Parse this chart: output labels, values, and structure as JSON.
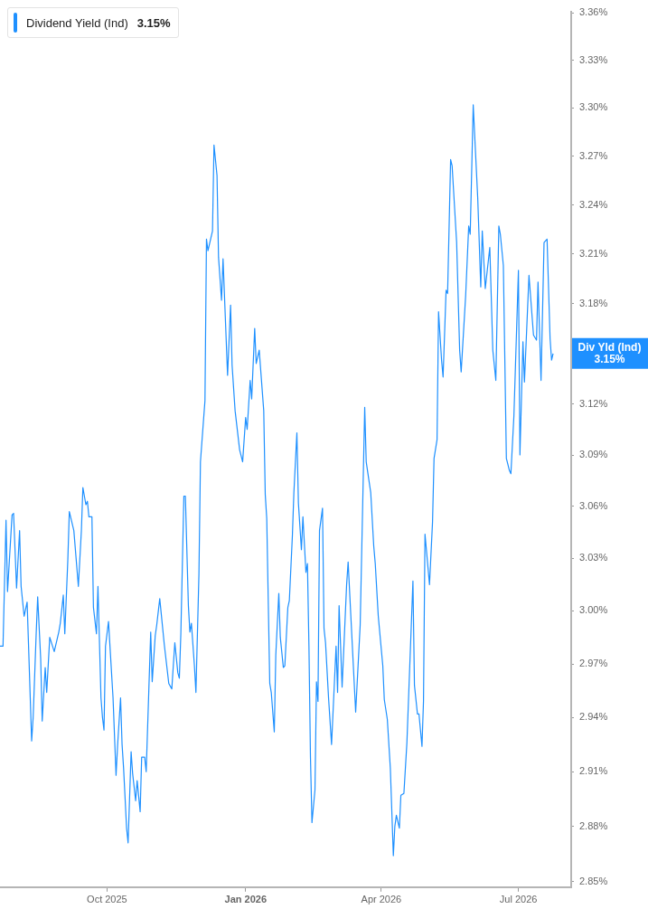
{
  "chart_data": {
    "type": "line",
    "log": true,
    "legend": "top left",
    "xlim": [
      "2025-07-22",
      "2026-08-05"
    ],
    "xticks": [
      {
        "value": "2025-10-01",
        "label": "Oct 2025"
      },
      {
        "value": "2026-01-01",
        "label": "Jan 2026"
      },
      {
        "value": "2026-04-01",
        "label": "Apr 2026"
      },
      {
        "value": "2026-07-01",
        "label": "Jul 2026"
      }
    ],
    "ylim": [
      2.847,
      3.361
    ],
    "yticks": [
      {
        "value": 2.85,
        "label": "2.85%"
      },
      {
        "value": 2.88,
        "label": "2.88%"
      },
      {
        "value": 2.91,
        "label": "2.91%"
      },
      {
        "value": 2.94,
        "label": "2.94%"
      },
      {
        "value": 2.97,
        "label": "2.97%"
      },
      {
        "value": 3.0,
        "label": "3.00%"
      },
      {
        "value": 3.03,
        "label": "3.03%"
      },
      {
        "value": 3.06,
        "label": "3.06%"
      },
      {
        "value": 3.09,
        "label": "3.09%"
      },
      {
        "value": 3.12,
        "label": "3.12%"
      },
      {
        "value": 3.15,
        "label": null
      },
      {
        "value": 3.18,
        "label": "3.18%"
      },
      {
        "value": 3.21,
        "label": "3.21%"
      },
      {
        "value": 3.24,
        "label": "3.24%"
      },
      {
        "value": 3.27,
        "label": "3.27%"
      },
      {
        "value": 3.3,
        "label": "3.30%"
      },
      {
        "value": 3.33,
        "label": "3.33%"
      },
      {
        "value": 3.36,
        "label": "3.36%"
      }
    ],
    "annotations": [
      "3.15%",
      {
        "text": "Div Yld (Ind)\n3.15%",
        "x": "2026-07-24",
        "y": 3.15
      }
    ],
    "x": [
      "2025-07-22",
      "2025-07-24",
      "2025-07-26",
      "2025-07-27",
      "2025-07-30",
      "2025-07-31",
      "2025-08-02",
      "2025-08-04",
      "2025-08-05",
      "2025-08-07",
      "2025-08-09",
      "2025-08-12",
      "2025-08-13",
      "2025-08-15",
      "2025-08-16",
      "2025-08-18",
      "2025-08-19",
      "2025-08-21",
      "2025-08-22",
      "2025-08-24",
      "2025-08-27",
      "2025-08-30",
      "2025-08-31",
      "2025-09-02",
      "2025-09-03",
      "2025-09-05",
      "2025-09-06",
      "2025-09-09",
      "2025-09-12",
      "2025-09-14",
      "2025-09-15",
      "2025-09-17",
      "2025-09-18",
      "2025-09-19",
      "2025-09-21",
      "2025-09-22",
      "2025-09-24",
      "2025-09-25",
      "2025-09-27",
      "2025-09-28",
      "2025-09-29",
      "2025-09-30",
      "2025-10-02",
      "2025-10-05",
      "2025-10-07",
      "2025-10-08",
      "2025-10-10",
      "2025-10-11",
      "2025-10-12",
      "2025-10-14",
      "2025-10-15",
      "2025-10-17",
      "2025-10-18",
      "2025-10-20",
      "2025-10-21",
      "2025-10-23",
      "2025-10-24",
      "2025-10-26",
      "2025-10-27",
      "2025-10-30",
      "2025-10-31",
      "2025-11-02",
      "2025-11-03",
      "2025-11-05",
      "2025-11-08",
      "2025-11-11",
      "2025-11-13",
      "2025-11-15",
      "2025-11-17",
      "2025-11-18",
      "2025-11-19",
      "2025-11-21",
      "2025-11-22",
      "2025-11-24",
      "2025-11-25",
      "2025-11-26",
      "2025-11-28",
      "2025-11-29",
      "2025-12-01",
      "2025-12-02",
      "2025-12-05",
      "2025-12-06",
      "2025-12-07",
      "2025-12-10",
      "2025-12-11",
      "2025-12-13",
      "2025-12-14",
      "2025-12-16",
      "2025-12-17",
      "2025-12-20",
      "2025-12-22",
      "2025-12-23",
      "2025-12-25",
      "2025-12-28",
      "2025-12-30",
      "2026-01-01",
      "2026-01-02",
      "2026-01-04",
      "2026-01-05",
      "2026-01-07",
      "2026-01-08",
      "2026-01-10",
      "2026-01-13",
      "2026-01-14",
      "2026-01-15",
      "2026-01-17",
      "2026-01-18",
      "2026-01-20",
      "2026-01-21",
      "2026-01-23",
      "2026-01-24",
      "2026-01-26",
      "2026-01-27",
      "2026-01-29",
      "2026-01-30",
      "2026-02-01",
      "2026-02-02",
      "2026-02-04",
      "2026-02-05",
      "2026-02-07",
      "2026-02-08",
      "2026-02-10",
      "2026-02-11",
      "2026-02-12",
      "2026-02-13",
      "2026-02-14",
      "2026-02-16",
      "2026-02-17",
      "2026-02-18",
      "2026-02-19",
      "2026-02-21",
      "2026-02-22",
      "2026-02-23",
      "2026-02-25",
      "2026-02-27",
      "2026-03-02",
      "2026-03-03",
      "2026-03-04",
      "2026-03-06",
      "2026-03-09",
      "2026-03-10",
      "2026-03-15",
      "2026-03-18",
      "2026-03-21",
      "2026-03-22",
      "2026-03-24",
      "2026-03-25",
      "2026-03-27",
      "2026-03-28",
      "2026-03-30",
      "2026-04-02",
      "2026-04-03",
      "2026-04-05",
      "2026-04-07",
      "2026-04-09",
      "2026-04-10",
      "2026-04-11",
      "2026-04-13",
      "2026-04-14",
      "2026-04-16",
      "2026-04-18",
      "2026-04-22",
      "2026-04-23",
      "2026-04-25",
      "2026-04-26",
      "2026-04-28",
      "2026-04-29",
      "2026-04-30",
      "2026-05-03",
      "2026-05-05",
      "2026-05-06",
      "2026-05-08",
      "2026-05-09",
      "2026-05-11",
      "2026-05-12",
      "2026-05-14",
      "2026-05-15",
      "2026-05-17",
      "2026-05-18",
      "2026-05-21",
      "2026-05-23",
      "2026-05-24",
      "2026-05-27",
      "2026-05-29",
      "2026-05-30",
      "2026-06-01",
      "2026-06-04",
      "2026-06-06",
      "2026-06-07",
      "2026-06-09",
      "2026-06-12",
      "2026-06-14",
      "2026-06-16",
      "2026-06-18",
      "2026-06-19",
      "2026-06-21",
      "2026-06-23",
      "2026-06-25",
      "2026-06-26",
      "2026-06-28",
      "2026-07-01",
      "2026-07-02",
      "2026-07-04",
      "2026-07-05",
      "2026-07-08",
      "2026-07-11",
      "2026-07-13",
      "2026-07-14",
      "2026-07-16",
      "2026-07-18",
      "2026-07-20",
      "2026-07-22",
      "2026-07-23",
      "2026-07-24"
    ],
    "series": [
      {
        "name": "Dividend Yield (Ind)",
        "color": "#1e90ff",
        "values": [
          2.98,
          2.98,
          3.052,
          3.011,
          3.055,
          3.056,
          3.013,
          3.046,
          3.014,
          2.997,
          3.005,
          2.927,
          2.94,
          2.987,
          3.008,
          2.973,
          2.938,
          2.968,
          2.954,
          2.985,
          2.977,
          2.988,
          2.993,
          3.009,
          2.987,
          3.029,
          3.057,
          3.046,
          3.014,
          3.046,
          3.071,
          3.061,
          3.063,
          3.054,
          3.054,
          3.002,
          2.987,
          3.014,
          2.951,
          2.94,
          2.933,
          2.98,
          2.994,
          2.951,
          2.908,
          2.924,
          2.951,
          2.925,
          2.912,
          2.879,
          2.871,
          2.921,
          2.909,
          2.894,
          2.905,
          2.888,
          2.918,
          2.918,
          2.91,
          2.988,
          2.96,
          2.986,
          2.992,
          3.007,
          2.981,
          2.959,
          2.956,
          2.982,
          2.965,
          2.962,
          2.987,
          3.066,
          3.066,
          3.003,
          2.988,
          2.993,
          2.969,
          2.954,
          3.021,
          3.086,
          3.122,
          3.219,
          3.212,
          3.224,
          3.277,
          3.258,
          3.208,
          3.182,
          3.207,
          3.137,
          3.179,
          3.143,
          3.116,
          3.093,
          3.086,
          3.112,
          3.105,
          3.134,
          3.123,
          3.165,
          3.144,
          3.152,
          3.116,
          3.067,
          3.053,
          2.959,
          2.954,
          2.932,
          2.975,
          3.01,
          2.985,
          2.968,
          2.969,
          3.002,
          3.006,
          3.043,
          3.068,
          3.103,
          3.062,
          3.035,
          3.054,
          3.022,
          3.027,
          2.98,
          2.918,
          2.882,
          2.9,
          2.96,
          2.949,
          3.046,
          3.059,
          2.99,
          2.982,
          2.951,
          2.925,
          2.98,
          2.954,
          3.003,
          2.957,
          3.015,
          3.028,
          2.943,
          2.992,
          3.118,
          3.086,
          3.074,
          3.068,
          3.037,
          3.027,
          2.997,
          2.969,
          2.95,
          2.939,
          2.912,
          2.864,
          2.88,
          2.886,
          2.879,
          2.897,
          2.898,
          2.926,
          3.017,
          2.958,
          2.942,
          2.942,
          2.924,
          2.949,
          3.044,
          3.015,
          3.051,
          3.088,
          3.099,
          3.175,
          3.146,
          3.136,
          3.188,
          3.186,
          3.268,
          3.264,
          3.217,
          3.152,
          3.139,
          3.185,
          3.227,
          3.222,
          3.302,
          3.244,
          3.19,
          3.224,
          3.189,
          3.214,
          3.152,
          3.134,
          3.227,
          3.222,
          3.203,
          3.088,
          3.081,
          3.079,
          3.113,
          3.2,
          3.09,
          3.157,
          3.133,
          3.197,
          3.161,
          3.158,
          3.193,
          3.134,
          3.217,
          3.219,
          3.159,
          3.146,
          3.15
        ]
      }
    ]
  }
}
